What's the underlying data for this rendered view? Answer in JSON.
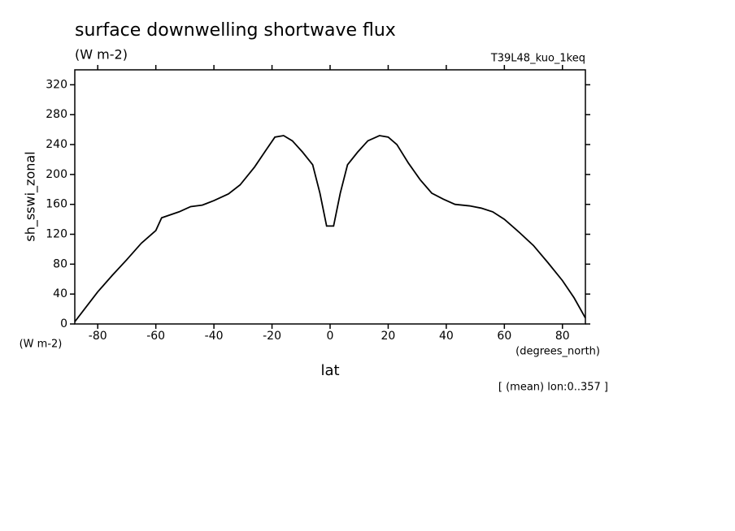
{
  "chart_data": {
    "type": "line",
    "title": "surface downwelling shortwave flux",
    "subtitle": "(W m-2)",
    "run_label": "T39L48_kuo_1keq",
    "y_label": "sh_sswi_zonal",
    "y_units": "(W m-2)",
    "x_label": "lat",
    "x_units": "(degrees_north)",
    "note": "[ (mean) lon:0..357 ]",
    "x": [
      -87.9,
      -80,
      -75,
      -70,
      -65,
      -60,
      -58,
      -52,
      -48,
      -44,
      -40,
      -35,
      -31,
      -26,
      -22,
      -19,
      -16,
      -13,
      -9.5,
      -6,
      -3.5,
      -1.2,
      1.2,
      3.5,
      6,
      9.5,
      13,
      17,
      20,
      23,
      27,
      31,
      35,
      39,
      43,
      48,
      52,
      56,
      60,
      65,
      70,
      75,
      80,
      84,
      87.9
    ],
    "series": [
      {
        "name": "sh_sswi_zonal",
        "color": "#000000",
        "values": [
          3,
          43,
          65,
          86,
          108,
          125,
          142,
          150,
          157,
          159,
          165,
          174,
          186,
          210,
          233,
          250,
          252,
          245,
          230,
          213,
          175,
          131,
          131,
          175,
          213,
          230,
          245,
          252,
          250,
          240,
          215,
          193,
          175,
          167,
          160,
          158,
          155,
          150,
          140,
          123,
          105,
          82,
          58,
          35,
          8
        ]
      }
    ],
    "xlim": [
      -87.9,
      87.9
    ],
    "ylim": [
      0,
      340
    ],
    "xticks": [
      -80,
      -60,
      -40,
      -20,
      0,
      20,
      40,
      60,
      80
    ],
    "yticks": [
      0,
      40,
      80,
      120,
      160,
      200,
      240,
      280,
      320
    ]
  }
}
